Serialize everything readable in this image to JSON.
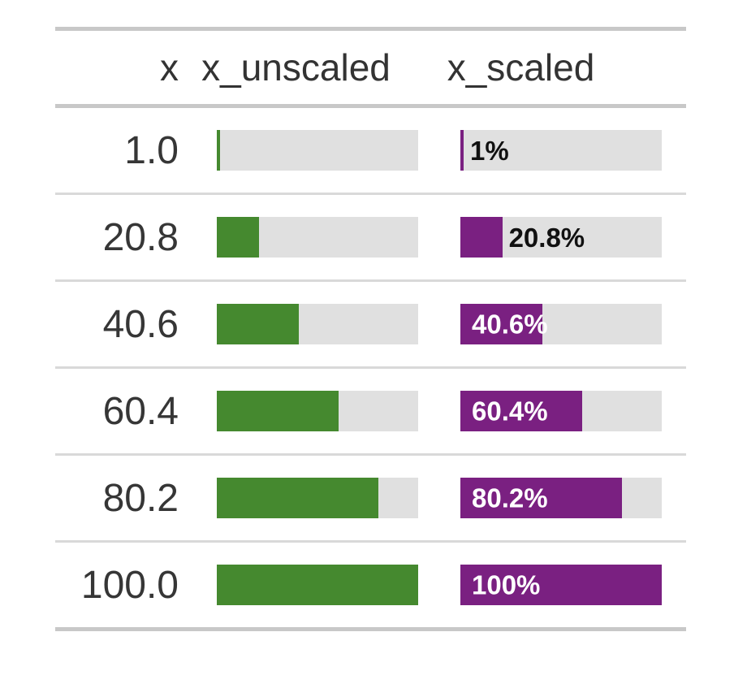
{
  "table": {
    "header": {
      "x": "x",
      "x_unscaled": "x_unscaled",
      "x_scaled": "x_scaled"
    },
    "rows": [
      {
        "x": "1.0",
        "unscaled_pct": 1,
        "scaled_pct": 1,
        "label_inside": "",
        "label_outside": "1%"
      },
      {
        "x": "20.8",
        "unscaled_pct": 20.8,
        "scaled_pct": 20.8,
        "label_inside": "",
        "label_outside": "20.8%"
      },
      {
        "x": "40.6",
        "unscaled_pct": 40.6,
        "scaled_pct": 40.6,
        "label_inside": "40.6%",
        "label_outside": ""
      },
      {
        "x": "60.4",
        "unscaled_pct": 60.4,
        "scaled_pct": 60.4,
        "label_inside": "60.4%",
        "label_outside": ""
      },
      {
        "x": "80.2",
        "unscaled_pct": 80.2,
        "scaled_pct": 80.2,
        "label_inside": "80.2%",
        "label_outside": ""
      },
      {
        "x": "100.0",
        "unscaled_pct": 100,
        "scaled_pct": 100,
        "label_inside": "100%",
        "label_outside": ""
      }
    ]
  },
  "colors": {
    "unscaled_bar": "#45892f",
    "scaled_bar": "#7a2081",
    "bar_track": "#e0e0e0",
    "thick_rule": "#c8c8c8",
    "row_rule": "#d9d9d9",
    "header_text": "#333333",
    "body_text": "#363636",
    "label_outside_text": "#111111",
    "label_inside_text": "#ffffff"
  },
  "chart_data": {
    "type": "table",
    "title": "",
    "columns": [
      "x",
      "x_unscaled",
      "x_scaled"
    ],
    "x_values": [
      1.0,
      20.8,
      40.6,
      60.4,
      80.2,
      100.0
    ],
    "series": [
      {
        "name": "x_unscaled",
        "type": "bar",
        "values": [
          1.0,
          20.8,
          40.6,
          60.4,
          80.2,
          100.0
        ],
        "range": [
          0,
          100
        ],
        "color": "#45892f",
        "labels": []
      },
      {
        "name": "x_scaled",
        "type": "bar",
        "values": [
          1.0,
          20.8,
          40.6,
          60.4,
          80.2,
          100.0
        ],
        "range": [
          0,
          100
        ],
        "color": "#7a2081",
        "labels": [
          "1%",
          "20.8%",
          "40.6%",
          "60.4%",
          "80.2%",
          "100%"
        ]
      }
    ],
    "layout_hints": {
      "grid": false,
      "legend": false,
      "bar_track_color": "#e0e0e0"
    }
  }
}
